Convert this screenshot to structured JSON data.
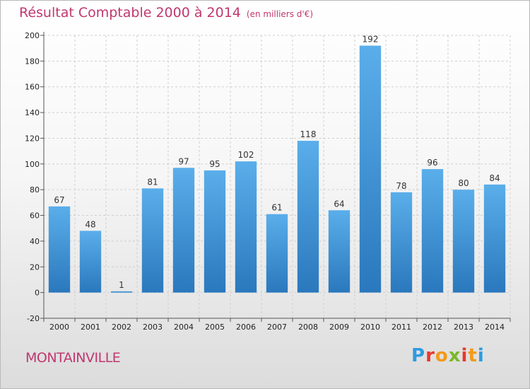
{
  "header": {
    "title": "Résultat Comptable 2000 à 2014",
    "subtitle": "(en milliers d'€)"
  },
  "footer": {
    "town": "MONTAINVILLE",
    "logo_letters": [
      "P",
      "r",
      "o",
      "x",
      "i",
      "t",
      "i"
    ]
  },
  "colors": {
    "bar_light": "#5aaeea",
    "bar_dark": "#2a78bd",
    "title": "#c0386e",
    "logo": [
      "#2d9be0",
      "#e7392b",
      "#f39a17",
      "#7ab829",
      "#e7392b",
      "#f39a17",
      "#2d9be0"
    ]
  },
  "chart_data": {
    "type": "bar",
    "categories": [
      "2000",
      "2001",
      "2002",
      "2003",
      "2004",
      "2005",
      "2006",
      "2007",
      "2008",
      "2009",
      "2010",
      "2011",
      "2012",
      "2013",
      "2014"
    ],
    "values": [
      67,
      48,
      1,
      81,
      97,
      95,
      102,
      61,
      118,
      64,
      192,
      78,
      96,
      80,
      84
    ],
    "value_labels": [
      "67",
      "48",
      "1",
      "81",
      "97",
      "95",
      "102",
      "61",
      "118",
      "64",
      "192",
      "78",
      "96",
      "80",
      "84"
    ],
    "title": "Résultat Comptable 2000 à 2014",
    "xlabel": "",
    "ylabel": "",
    "ylim": [
      -20,
      200
    ],
    "yticks": [
      -20,
      0,
      20,
      40,
      60,
      80,
      100,
      120,
      140,
      160,
      180,
      200
    ],
    "ytick_labels": [
      "-20",
      "0",
      "20",
      "40",
      "60",
      "80",
      "100",
      "120",
      "140",
      "160",
      "180",
      "200"
    ],
    "grid": true
  }
}
